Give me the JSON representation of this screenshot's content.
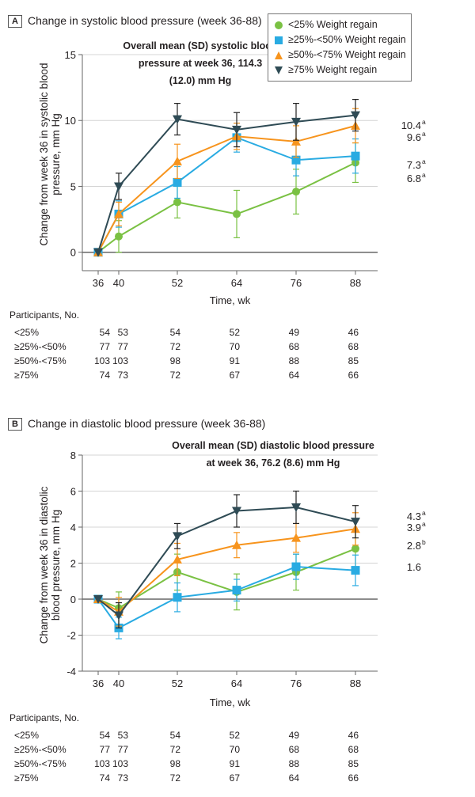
{
  "colors": {
    "lt25": "#7ac143",
    "25to50": "#29abe2",
    "50to75": "#f7941d",
    "ge75": "#2f4b55"
  },
  "legend": [
    {
      "label": "<25% Weight regain",
      "marker": "circle",
      "color": "#7ac143"
    },
    {
      "label": "≥25%-<50% Weight regain",
      "marker": "square",
      "color": "#29abe2"
    },
    {
      "label": "≥50%-<75% Weight regain",
      "marker": "triangle-up",
      "color": "#f7941d"
    },
    {
      "label": "≥75% Weight regain",
      "marker": "triangle-down",
      "color": "#2f4b55"
    }
  ],
  "chart_data": [
    {
      "type": "line",
      "panel": "A",
      "title": "Change in systolic blood pressure (week 36-88)",
      "subtitle": [
        "Overall mean (SD) systolic blood",
        "pressure at week 36, 114.3",
        "(12.0) mm Hg"
      ],
      "xlabel": "Time, wk",
      "ylabel": [
        "Change from week 36 in systolic blood",
        "pressure, mm Hg"
      ],
      "x": [
        36,
        40,
        52,
        64,
        76,
        88
      ],
      "x_ticks": [
        "36",
        "40",
        "52",
        "64",
        "76",
        "88"
      ],
      "y_ticks": [
        0,
        5,
        10,
        15
      ],
      "ylim": [
        -1.4,
        15
      ],
      "grid": true,
      "legend_position": "top-right",
      "series": [
        {
          "name": "<25% Weight regain",
          "values": [
            0,
            1.2,
            3.8,
            2.9,
            4.6,
            6.8
          ],
          "error": [
            0,
            1.2,
            1.2,
            1.8,
            1.7,
            1.5
          ],
          "end_label": "6.8",
          "end_sup": "a"
        },
        {
          "name": "≥25%-<50% Weight regain",
          "values": [
            0,
            2.9,
            5.3,
            8.7,
            7.0,
            7.3
          ],
          "error": [
            0,
            1.0,
            1.2,
            1.1,
            1.2,
            1.3
          ],
          "end_label": "7.3",
          "end_sup": "a"
        },
        {
          "name": "≥50%-<75% Weight regain",
          "values": [
            0,
            2.9,
            6.9,
            8.8,
            8.4,
            9.6
          ],
          "error": [
            0,
            0.9,
            1.3,
            1.0,
            1.2,
            1.3
          ],
          "end_label": "9.6",
          "end_sup": "a"
        },
        {
          "name": "≥75% Weight regain",
          "values": [
            0,
            5.0,
            10.1,
            9.3,
            9.9,
            10.4
          ],
          "error": [
            0,
            1.0,
            1.2,
            1.3,
            1.4,
            1.2
          ],
          "end_label": "10.4",
          "end_sup": "a"
        }
      ],
      "participants": {
        "header": "Participants, No.",
        "rows": [
          {
            "label": "<25%",
            "values": [
              "54",
              "53",
              "54",
              "52",
              "49",
              "46"
            ]
          },
          {
            "label": "≥25%-<50%",
            "values": [
              "77",
              "77",
              "72",
              "70",
              "68",
              "68"
            ]
          },
          {
            "label": "≥50%-<75%",
            "values": [
              "103",
              "103",
              "98",
              "91",
              "88",
              "85"
            ]
          },
          {
            "label": "≥75%",
            "values": [
              "74",
              "73",
              "72",
              "67",
              "64",
              "66"
            ]
          }
        ]
      }
    },
    {
      "type": "line",
      "panel": "B",
      "title": "Change in diastolic blood pressure (week 36-88)",
      "subtitle": [
        "Overall mean (SD) diastolic blood pressure",
        "at week 36, 76.2 (8.6) mm Hg"
      ],
      "xlabel": "Time, wk",
      "ylabel": [
        "Change from week 36 in diastolic",
        "blood pressure, mm Hg"
      ],
      "x": [
        36,
        40,
        52,
        64,
        76,
        88
      ],
      "x_ticks": [
        "36",
        "40",
        "52",
        "64",
        "76",
        "88"
      ],
      "y_ticks": [
        -4,
        -2,
        0,
        2,
        4,
        6,
        8
      ],
      "ylim": [
        -4,
        8
      ],
      "grid": true,
      "series": [
        {
          "name": "<25% Weight regain",
          "values": [
            0,
            -0.5,
            1.5,
            0.4,
            1.5,
            2.8
          ],
          "error": [
            0,
            0.9,
            1.0,
            1.0,
            1.0,
            1.0
          ],
          "end_label": "2.8",
          "end_sup": "b"
        },
        {
          "name": "≥25%-<50% Weight regain",
          "values": [
            0,
            -1.6,
            0.1,
            0.5,
            1.8,
            1.6
          ],
          "error": [
            0,
            0.6,
            0.8,
            0.6,
            0.7,
            0.85
          ],
          "end_label": "1.6",
          "end_sup": ""
        },
        {
          "name": "≥50%-<75% Weight regain",
          "values": [
            0,
            -0.7,
            2.2,
            3.0,
            3.4,
            3.9
          ],
          "error": [
            0,
            0.8,
            0.9,
            0.7,
            0.8,
            0.9
          ],
          "end_label": "3.9",
          "end_sup": "a"
        },
        {
          "name": "≥75% Weight regain",
          "values": [
            0,
            -0.9,
            3.5,
            4.9,
            5.1,
            4.3
          ],
          "error": [
            0,
            0.7,
            0.7,
            0.9,
            0.9,
            0.9
          ],
          "end_label": "4.3",
          "end_sup": "a"
        }
      ],
      "participants": {
        "header": "Participants, No.",
        "rows": [
          {
            "label": "<25%",
            "values": [
              "54",
              "53",
              "54",
              "52",
              "49",
              "46"
            ]
          },
          {
            "label": "≥25%-<50%",
            "values": [
              "77",
              "77",
              "72",
              "70",
              "68",
              "68"
            ]
          },
          {
            "label": "≥50%-<75%",
            "values": [
              "103",
              "103",
              "98",
              "91",
              "88",
              "85"
            ]
          },
          {
            "label": "≥75%",
            "values": [
              "74",
              "73",
              "72",
              "67",
              "64",
              "66"
            ]
          }
        ]
      }
    }
  ]
}
